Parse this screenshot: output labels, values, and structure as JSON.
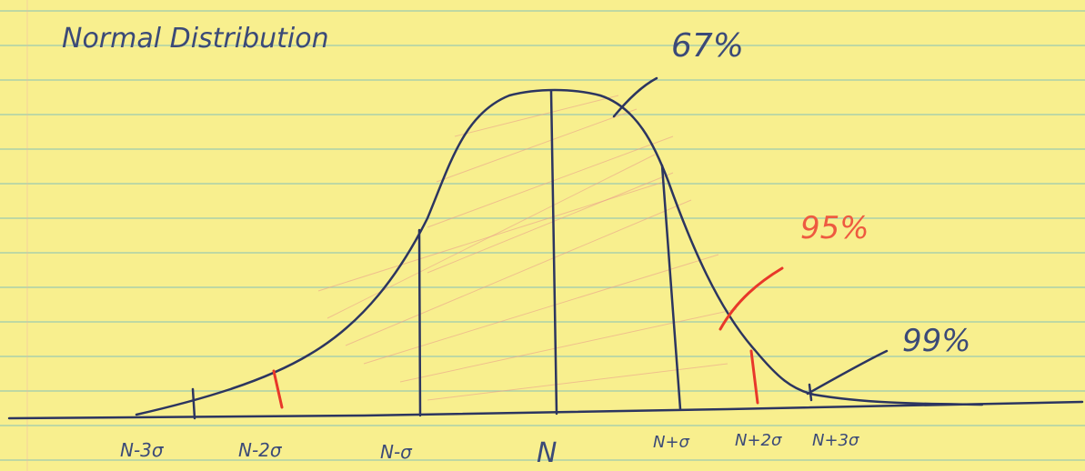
{
  "title": "Normal Distribution",
  "annotations": [
    "67%",
    "95%",
    "99%"
  ],
  "axis_labels": [
    "N-3σ",
    "N-2σ",
    "N-σ",
    "N",
    "N+σ",
    "N+2σ",
    "N+3σ"
  ]
}
